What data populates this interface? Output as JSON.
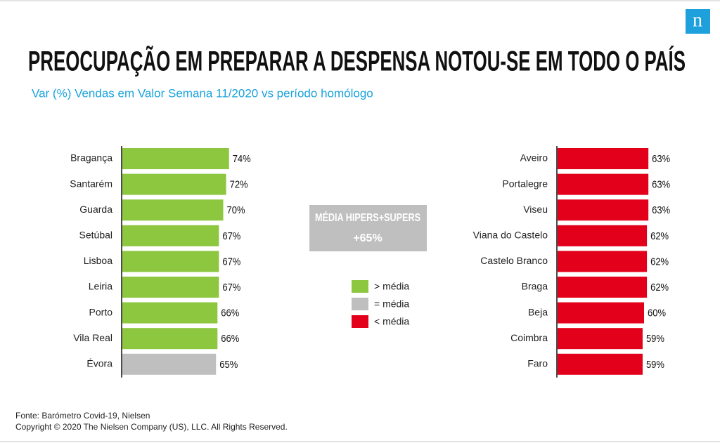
{
  "title": "PREOCUPAÇÃO EM PREPARAR A DESPENSA NOTOU-SE EM TODO O PAÍS",
  "subtitle": "Var (%) Vendas em Valor Semana 11/2020 vs período homólogo",
  "logo": "n",
  "average_box": {
    "label": "MÉDIA HIPERS+SUPERS",
    "value": "+65%"
  },
  "legend": {
    "items": [
      {
        "label": "> média",
        "color": "#8dc63f"
      },
      {
        "label": "= média",
        "color": "#bfbfbf"
      },
      {
        "label": "< média",
        "color": "#e2001a"
      }
    ]
  },
  "footer": [
    "Fonte: Barómetro Covid-19, Nielsen",
    "Copyright © 2020 The Nielsen Company (US), LLC. All Rights Reserved."
  ],
  "chart_data": [
    {
      "type": "bar",
      "orientation": "horizontal",
      "categories": [
        "Bragança",
        "Santarém",
        "Guarda",
        "Setúbal",
        "Lisboa",
        "Leiria",
        "Porto",
        "Vila Real",
        "Évora"
      ],
      "values": [
        74,
        72,
        70,
        67,
        67,
        67,
        66,
        66,
        65
      ],
      "value_labels": [
        "74%",
        "72%",
        "70%",
        "67%",
        "67%",
        "67%",
        "66%",
        "66%",
        "65%"
      ],
      "colors": [
        "#8dc63f",
        "#8dc63f",
        "#8dc63f",
        "#8dc63f",
        "#8dc63f",
        "#8dc63f",
        "#8dc63f",
        "#8dc63f",
        "#bfbfbf"
      ]
    },
    {
      "type": "bar",
      "orientation": "horizontal",
      "categories": [
        "Aveiro",
        "Portalegre",
        "Viseu",
        "Viana do Castelo",
        "Castelo Branco",
        "Braga",
        "Beja",
        "Coimbra",
        "Faro"
      ],
      "values": [
        63,
        63,
        63,
        62,
        62,
        62,
        60,
        59,
        59
      ],
      "value_labels": [
        "63%",
        "63%",
        "63%",
        "62%",
        "62%",
        "62%",
        "60%",
        "59%",
        "59%"
      ],
      "colors": [
        "#e2001a",
        "#e2001a",
        "#e2001a",
        "#e2001a",
        "#e2001a",
        "#e2001a",
        "#e2001a",
        "#e2001a",
        "#e2001a"
      ]
    }
  ]
}
